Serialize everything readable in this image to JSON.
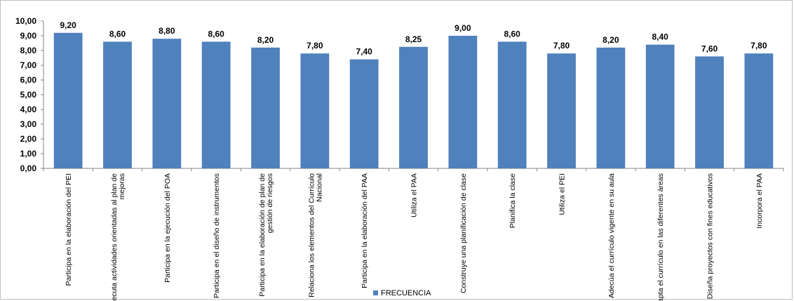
{
  "chart_data": {
    "type": "bar",
    "categories": [
      [
        "Participa en la elaboración del PEI"
      ],
      [
        "Ejecuta actividades orientadas al plan de",
        "mejoras"
      ],
      [
        "Participa en la ejecución del POA"
      ],
      [
        "Participa en el diseño de instrumentos"
      ],
      [
        "Participa en la elaboración de plan de",
        "gestión de riesgos"
      ],
      [
        "Relaciona los elementos del Currículo",
        "Nacional"
      ],
      [
        "Participa en la elaboración del PAA"
      ],
      [
        "Utiliza el PAA"
      ],
      [
        "Construye una planificación de clase"
      ],
      [
        "Planifica la clase"
      ],
      [
        "Utiliza el PEI"
      ],
      [
        "Adecúa el currículo vigente en su aula"
      ],
      [
        "Adapta el currículo en las diferentes áreas"
      ],
      [
        "Diseña proyectos con fines educativos"
      ],
      [
        "Incorpora el PAA"
      ]
    ],
    "series": [
      {
        "name": "FRECUENCIA",
        "values": [
          9.2,
          8.6,
          8.8,
          8.6,
          8.2,
          7.8,
          7.4,
          8.25,
          9.0,
          8.6,
          7.8,
          8.2,
          8.4,
          7.6,
          7.8
        ],
        "data_labels": [
          "9,20",
          "8,60",
          "8,80",
          "8,60",
          "8,20",
          "7,80",
          "7,40",
          "8,25",
          "9,00",
          "8,60",
          "7,80",
          "8,20",
          "8,40",
          "7,60",
          "7,80"
        ],
        "color": "#4f81bd"
      }
    ],
    "y_ticks": [
      "0,00",
      "1,00",
      "2,00",
      "3,00",
      "4,00",
      "5,00",
      "6,00",
      "7,00",
      "8,00",
      "9,00",
      "10,00"
    ],
    "ylim": [
      0,
      10
    ],
    "grid": false,
    "legend": "bottom",
    "title": "",
    "xlabel": "",
    "ylabel": ""
  }
}
